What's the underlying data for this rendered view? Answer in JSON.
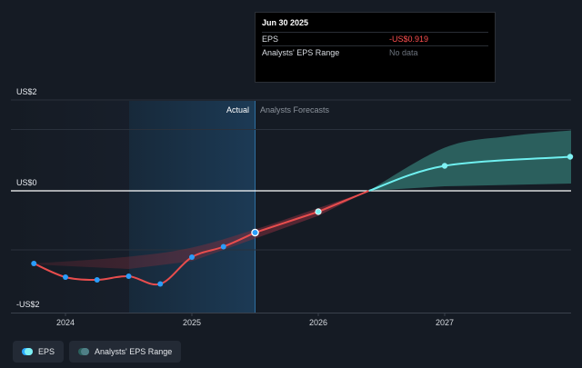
{
  "tooltip": {
    "date": "Jun 30 2025",
    "rows": [
      {
        "label": "EPS",
        "value": "-US$0.919"
      },
      {
        "label": "Analysts' EPS Range",
        "value": "No data"
      }
    ]
  },
  "legend": {
    "items": [
      {
        "label": "EPS",
        "icon": "eps-dot-icon"
      },
      {
        "label": "Analysts' EPS Range",
        "icon": "range-dot-icon"
      }
    ]
  },
  "chart_data": {
    "type": "line",
    "y_labels": [
      "US$2",
      "US$0",
      "-US$2"
    ],
    "ylim": [
      -2.0,
      2.0
    ],
    "x_ticks": [
      "2024",
      "2025",
      "2026",
      "2027"
    ],
    "section_labels": {
      "actual": "Actual",
      "forecast": "Analysts Forecasts"
    },
    "actual_series": {
      "name": "EPS",
      "points": [
        {
          "t": 2023.75,
          "y": -1.6
        },
        {
          "t": 2024.0,
          "y": -1.9
        },
        {
          "t": 2024.25,
          "y": -1.96
        },
        {
          "t": 2024.5,
          "y": -1.88
        },
        {
          "t": 2024.75,
          "y": -2.05
        },
        {
          "t": 2025.0,
          "y": -1.46
        },
        {
          "t": 2025.25,
          "y": -1.23
        },
        {
          "t": 2025.5,
          "y": -0.919
        }
      ]
    },
    "forecast_series": {
      "name": "EPS",
      "points": [
        {
          "t": 2025.5,
          "y": -0.919
        },
        {
          "t": 2026.0,
          "y": -0.46
        },
        {
          "t": 2027.0,
          "y": 0.55
        },
        {
          "t": 2028.0,
          "y": 0.75
        }
      ]
    },
    "forecast_range": {
      "name": "Analysts' EPS Range",
      "upper": [
        {
          "t": 2026.4,
          "y": 0.0
        },
        {
          "t": 2027.0,
          "y": 0.95
        },
        {
          "t": 2027.5,
          "y": 1.2
        },
        {
          "t": 2028.0,
          "y": 1.33
        }
      ],
      "lower": [
        {
          "t": 2026.4,
          "y": 0.0
        },
        {
          "t": 2027.0,
          "y": 0.1
        },
        {
          "t": 2028.0,
          "y": 0.16
        }
      ]
    },
    "colors": {
      "actual_line": "#e84d4d",
      "forecast_line": "#6ff0f0",
      "point_fill": "#2a9dfb",
      "range_fill": "#2f6b67",
      "zero_line": "#ffffff"
    }
  }
}
